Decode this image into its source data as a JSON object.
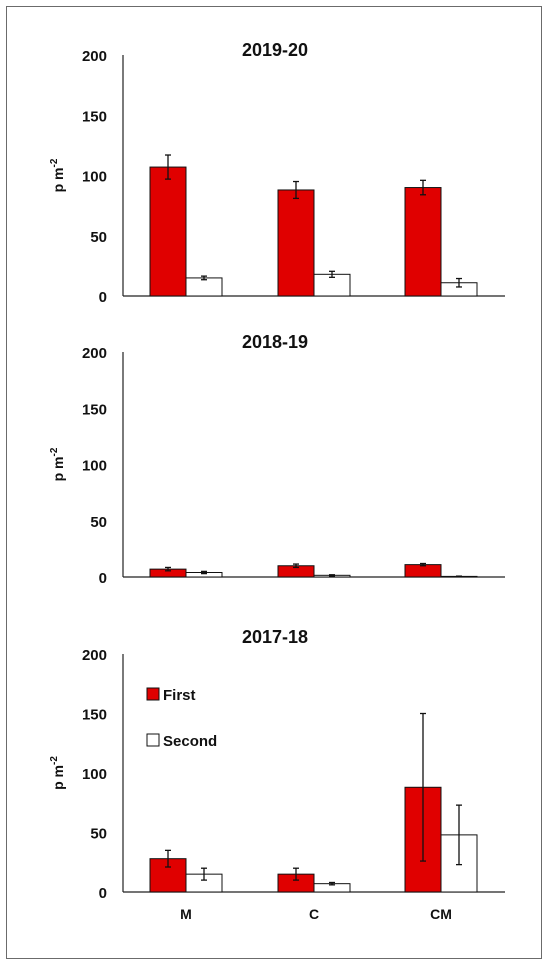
{
  "chart_data": [
    {
      "type": "bar",
      "title": "2019-20",
      "ylabel": "p m",
      "ylabel_sup": "-2",
      "ylim": [
        0,
        200
      ],
      "yticks": [
        0,
        50,
        100,
        150,
        200
      ],
      "categories": [
        "M",
        "C",
        "CM"
      ],
      "show_category_labels": false,
      "series": [
        {
          "name": "First",
          "color": "#e00000",
          "values": [
            107,
            88,
            90
          ],
          "errors": [
            10,
            7,
            6
          ]
        },
        {
          "name": "Second",
          "color": "#ffffff",
          "values": [
            15,
            18,
            11
          ],
          "errors": [
            1.5,
            2.5,
            3.5
          ]
        }
      ]
    },
    {
      "type": "bar",
      "title": "2018-19",
      "ylabel": "p m",
      "ylabel_sup": "-2",
      "ylim": [
        0,
        200
      ],
      "yticks": [
        0,
        50,
        100,
        150,
        200
      ],
      "categories": [
        "M",
        "C",
        "CM"
      ],
      "show_category_labels": false,
      "series": [
        {
          "name": "First",
          "color": "#e00000",
          "values": [
            7,
            10,
            11
          ],
          "errors": [
            1.5,
            1.5,
            1
          ]
        },
        {
          "name": "Second",
          "color": "#ffffff",
          "values": [
            4,
            1.5,
            0.5
          ],
          "errors": [
            1,
            0.5,
            0.3
          ]
        }
      ]
    },
    {
      "type": "bar",
      "title": "2017-18",
      "ylabel": "p m",
      "ylabel_sup": "-2",
      "ylim": [
        0,
        200
      ],
      "yticks": [
        0,
        50,
        100,
        150,
        200
      ],
      "categories": [
        "M",
        "C",
        "CM"
      ],
      "show_category_labels": true,
      "legend": {
        "position": "top-left",
        "entries": [
          "First",
          "Second"
        ]
      },
      "series": [
        {
          "name": "First",
          "color": "#e00000",
          "values": [
            28,
            15,
            88
          ],
          "errors": [
            7,
            5,
            62
          ]
        },
        {
          "name": "Second",
          "color": "#ffffff",
          "values": [
            15,
            7,
            48
          ],
          "errors": [
            5,
            1,
            25
          ]
        }
      ]
    }
  ]
}
